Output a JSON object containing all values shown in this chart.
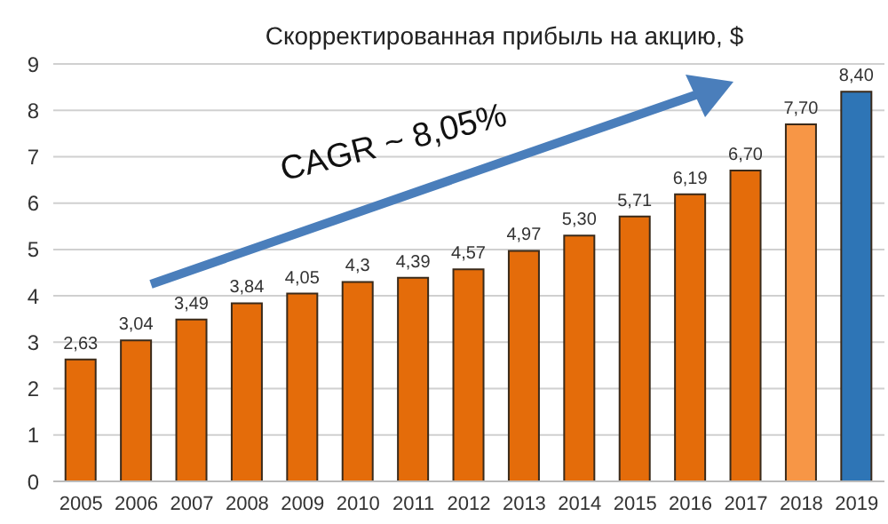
{
  "chart_data": {
    "type": "bar",
    "title": "Скорректированная прибыль на акцию, $",
    "categories": [
      "2005",
      "2006",
      "2007",
      "2008",
      "2009",
      "2010",
      "2011",
      "2012",
      "2013",
      "2014",
      "2015",
      "2016",
      "2017",
      "2018",
      "2019"
    ],
    "values": [
      2.63,
      3.04,
      3.49,
      3.84,
      4.05,
      4.3,
      4.39,
      4.57,
      4.97,
      5.3,
      5.71,
      6.19,
      6.7,
      7.7,
      8.4
    ],
    "colors": [
      "#e46c0a",
      "#e46c0a",
      "#e46c0a",
      "#e46c0a",
      "#e46c0a",
      "#e46c0a",
      "#e46c0a",
      "#e46c0a",
      "#e46c0a",
      "#e46c0a",
      "#e46c0a",
      "#e46c0a",
      "#e46c0a",
      "#f79646",
      "#2e75b6"
    ],
    "value_labels": [
      "2,63",
      "3,04",
      "3,49",
      "3,84",
      "4,05",
      "4,3",
      "4,39",
      "4,57",
      "4,97",
      "5,30",
      "5,71",
      "6,19",
      "6,70",
      "7,70",
      "8,40"
    ],
    "ylim": [
      0,
      9
    ],
    "yticks": [
      0,
      1,
      2,
      3,
      4,
      5,
      6,
      7,
      8,
      9
    ],
    "grid": "y",
    "annotations": [
      "CAGR ~ 8,05%"
    ]
  }
}
